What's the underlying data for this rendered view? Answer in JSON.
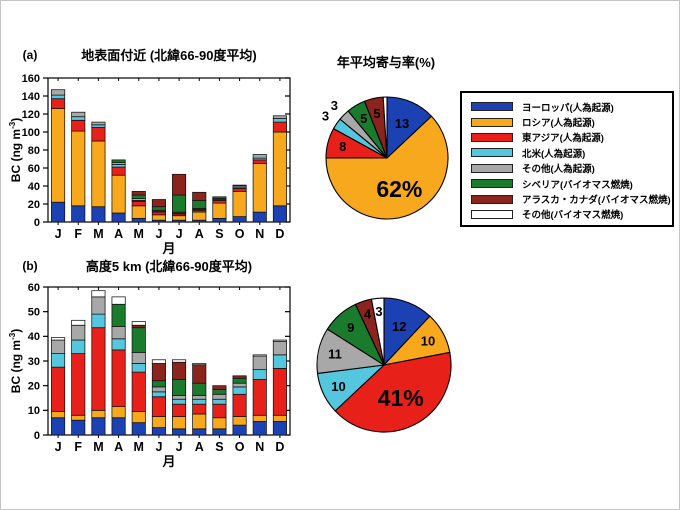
{
  "pie_section_title": "年平均寄与率(%)",
  "palette": {
    "europe": "#1C41B2",
    "russia": "#F7A81C",
    "east_asia": "#E8201A",
    "north_america": "#54C6DD",
    "other_anthro": "#A8A8A8",
    "siberia": "#1B7B2C",
    "alaska_canada": "#8C241E",
    "other_biomass": "#FFFFFF"
  },
  "legend": {
    "items": [
      {
        "key": "europe",
        "label": "ヨーロッパ(人為起源)"
      },
      {
        "key": "russia",
        "label": "ロシア(人為起源)"
      },
      {
        "key": "east_asia",
        "label": "東アジア(人為起源)"
      },
      {
        "key": "north_america",
        "label": "北米(人為起源)"
      },
      {
        "key": "other_anthro",
        "label": "その他(人為起源)"
      },
      {
        "key": "siberia",
        "label": "シベリア(バイオマス燃焼)"
      },
      {
        "key": "alaska_canada",
        "label": "アラスカ・カナダ(バイオマス燃焼)"
      },
      {
        "key": "other_biomass",
        "label": "その他(バイオマス燃焼)"
      }
    ]
  },
  "chart_data": [
    {
      "id": "bar-surface",
      "type": "bar",
      "stacked": true,
      "panel": "(a)",
      "title": "地表面付近 (北緯66-90度平均)",
      "xlabel": "月",
      "ylabel": {
        "base": "BC (ng m",
        "sup": "-3",
        "end": ")"
      },
      "ylim": [
        0,
        160
      ],
      "ytick_step": 20,
      "grid": false,
      "categories": [
        "J",
        "F",
        "M",
        "A",
        "M",
        "J",
        "J",
        "A",
        "S",
        "O",
        "N",
        "D"
      ],
      "series": [
        {
          "key": "europe",
          "name": "ヨーロッパ(人為起源)",
          "values": [
            22,
            18,
            17,
            10,
            4,
            2,
            2,
            2,
            4,
            6,
            11,
            18
          ]
        },
        {
          "key": "russia",
          "name": "ロシア(人為起源)",
          "values": [
            104,
            83,
            73,
            42,
            14,
            6,
            5,
            9,
            17,
            28,
            54,
            82
          ]
        },
        {
          "key": "east_asia",
          "name": "東アジア(人為起源)",
          "values": [
            11,
            12,
            15,
            9,
            5,
            3,
            2,
            2,
            3,
            3,
            4,
            11
          ]
        },
        {
          "key": "north_america",
          "name": "北米(人為起源)",
          "values": [
            4,
            4,
            3,
            3,
            1,
            1,
            1,
            1,
            1,
            1,
            2,
            4
          ]
        },
        {
          "key": "other_anthro",
          "name": "その他(人為起源)",
          "values": [
            6,
            5,
            3,
            2,
            2,
            1,
            1,
            1,
            1,
            2,
            4,
            3
          ]
        },
        {
          "key": "siberia",
          "name": "シベリア(バイオマス燃焼)",
          "values": [
            0,
            0,
            0,
            3,
            4,
            4,
            19,
            9,
            2,
            1,
            0,
            0
          ]
        },
        {
          "key": "alaska_canada",
          "name": "アラスカ・カナダ(バイオマス燃焼)",
          "values": [
            0,
            0,
            0,
            0,
            4,
            8,
            23,
            9,
            0,
            0,
            0,
            0
          ]
        },
        {
          "key": "other_biomass",
          "name": "その他(バイオマス燃焼)",
          "values": [
            0,
            0,
            0,
            0,
            0,
            0,
            0,
            0,
            0,
            0,
            0,
            0
          ]
        }
      ]
    },
    {
      "id": "bar-altitude",
      "type": "bar",
      "stacked": true,
      "panel": "(b)",
      "title": "高度5 km (北緯66-90度平均)",
      "xlabel": "月",
      "ylabel": {
        "base": "BC (ng m",
        "sup": "-3",
        "end": ")"
      },
      "ylim": [
        0,
        60
      ],
      "ytick_step": 10,
      "grid": false,
      "categories": [
        "J",
        "F",
        "M",
        "A",
        "M",
        "J",
        "J",
        "A",
        "S",
        "O",
        "N",
        "D"
      ],
      "series": [
        {
          "key": "europe",
          "name": "ヨーロッパ(人為起源)",
          "values": [
            7,
            6,
            7,
            7,
            5,
            3,
            2.5,
            2.5,
            2.5,
            4,
            5.5,
            5.5
          ]
        },
        {
          "key": "russia",
          "name": "ロシア(人為起源)",
          "values": [
            2.5,
            2,
            3,
            4.5,
            4.5,
            4.5,
            5,
            6,
            4.5,
            3.5,
            2.5,
            2.5
          ]
        },
        {
          "key": "east_asia",
          "name": "東アジア(人為起源)",
          "values": [
            18,
            25,
            33.5,
            23,
            16,
            8,
            5,
            4,
            5.5,
            9,
            14.5,
            19
          ]
        },
        {
          "key": "north_america",
          "name": "北米(人為起源)",
          "values": [
            5.5,
            5.5,
            5.5,
            4.5,
            3.5,
            2,
            2,
            2,
            2,
            3,
            4,
            5.5
          ]
        },
        {
          "key": "other_anthro",
          "name": "その他(人為起源)",
          "values": [
            5.5,
            6,
            7,
            5,
            4.5,
            2,
            1.5,
            1.5,
            2,
            1.5,
            5.5,
            5.5
          ]
        },
        {
          "key": "siberia",
          "name": "シベリア(バイオマス燃焼)",
          "values": [
            0,
            0,
            0,
            9,
            10,
            2.5,
            6.5,
            5,
            2,
            2,
            0,
            0
          ]
        },
        {
          "key": "alaska_canada",
          "name": "アラスカ・カナダ(バイオマス燃焼)",
          "values": [
            0,
            0,
            0,
            0,
            1,
            7,
            7,
            7.5,
            1.5,
            1,
            0,
            0
          ]
        },
        {
          "key": "other_biomass",
          "name": "その他(バイオマス燃焼)",
          "values": [
            1,
            2,
            2.5,
            3,
            1.5,
            1.5,
            1,
            0.5,
            0,
            0,
            0.5,
            0.5
          ]
        }
      ]
    },
    {
      "id": "pie-surface",
      "type": "pie",
      "title": "年平均寄与率(%)",
      "start_angle_deg": 0,
      "direction": "clockwise",
      "slices": [
        {
          "key": "europe",
          "name": "ヨーロッパ(人為起源)",
          "value": 13,
          "label": "13",
          "label_color": "#ffffff",
          "placement": "inside",
          "big": false
        },
        {
          "key": "russia",
          "name": "ロシア(人為起源)",
          "value": 62,
          "label": "62%",
          "label_color": "#000000",
          "placement": "inside",
          "big": true
        },
        {
          "key": "east_asia",
          "name": "東アジア(人為起源)",
          "value": 8,
          "label": "8",
          "label_color": "#000000",
          "placement": "inside",
          "big": false
        },
        {
          "key": "north_america",
          "name": "北米(人為起源)",
          "value": 3,
          "label": "3",
          "label_color": "#000000",
          "placement": "outside",
          "big": false
        },
        {
          "key": "other_anthro",
          "name": "その他(人為起源)",
          "value": 3,
          "label": "3",
          "label_color": "#000000",
          "placement": "outside",
          "big": false
        },
        {
          "key": "siberia",
          "name": "シベリア(バイオマス燃焼)",
          "value": 5,
          "label": "5",
          "label_color": "#ffffff",
          "placement": "inside",
          "big": false
        },
        {
          "key": "alaska_canada",
          "name": "アラスカ・カナダ(バイオマス燃焼)",
          "value": 5,
          "label": "5",
          "label_color": "#ffffff",
          "placement": "inside",
          "big": false
        },
        {
          "key": "other_biomass",
          "name": "その他(バイオマス燃焼)",
          "value": 1,
          "label": "",
          "label_color": "#000000",
          "placement": "none",
          "big": false
        }
      ]
    },
    {
      "id": "pie-altitude",
      "type": "pie",
      "title": "",
      "start_angle_deg": 0,
      "direction": "clockwise",
      "slices": [
        {
          "key": "europe",
          "name": "ヨーロッパ(人為起源)",
          "value": 12,
          "label": "12",
          "label_color": "#ffffff",
          "placement": "inside",
          "big": false
        },
        {
          "key": "russia",
          "name": "ロシア(人為起源)",
          "value": 10,
          "label": "10",
          "label_color": "#000000",
          "placement": "inside",
          "big": false
        },
        {
          "key": "east_asia",
          "name": "東アジア(人為起源)",
          "value": 41,
          "label": "41%",
          "label_color": "#000000",
          "placement": "inside",
          "big": true
        },
        {
          "key": "north_america",
          "name": "北米(人為起源)",
          "value": 10,
          "label": "10",
          "label_color": "#000000",
          "placement": "inside",
          "big": false
        },
        {
          "key": "other_anthro",
          "name": "その他(人為起源)",
          "value": 11,
          "label": "11",
          "label_color": "#000000",
          "placement": "inside",
          "big": false
        },
        {
          "key": "siberia",
          "name": "シベリア(バイオマス燃焼)",
          "value": 9,
          "label": "9",
          "label_color": "#ffffff",
          "placement": "inside",
          "big": false
        },
        {
          "key": "alaska_canada",
          "name": "アラスカ・カナダ(バイオマス燃焼)",
          "value": 4,
          "label": "4",
          "label_color": "#ffffff",
          "placement": "inside",
          "big": false
        },
        {
          "key": "other_biomass",
          "name": "その他(バイオマス燃焼)",
          "value": 3,
          "label": "3",
          "label_color": "#000000",
          "placement": "inside",
          "big": false
        }
      ]
    }
  ]
}
